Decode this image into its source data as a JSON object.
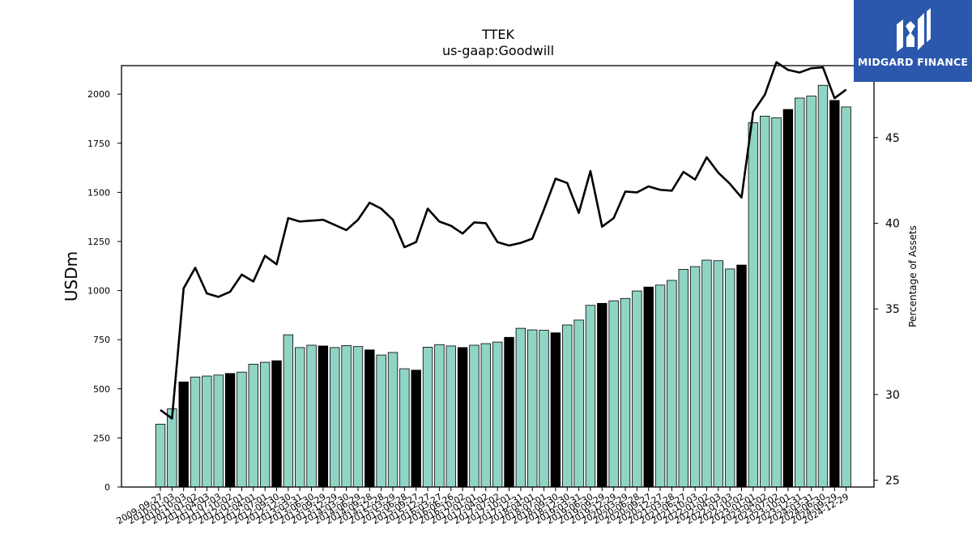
{
  "chart_data": {
    "type": "bar",
    "title": "TTEK",
    "subtitle": "us-gaap:Goodwill",
    "ylabel": "USDm",
    "y2label": "Percentage of Assets",
    "ylim": [
      0,
      2145
    ],
    "y2lim": [
      24.6,
      49.2
    ],
    "yticks": [
      0,
      250,
      500,
      750,
      1000,
      1250,
      1500,
      1750,
      2000
    ],
    "y2ticks": [
      25,
      30,
      35,
      40,
      45
    ],
    "grid": false,
    "categories": [
      "2009-09-27",
      "2010-01-03",
      "2010-10-03",
      "2011-01-02",
      "2011-04-03",
      "2011-07-03",
      "2011-10-02",
      "2012-01-01",
      "2012-04-01",
      "2012-07-01",
      "2012-09-30",
      "2012-12-30",
      "2013-03-31",
      "2013-06-30",
      "2013-09-29",
      "2013-12-29",
      "2014-03-30",
      "2014-06-29",
      "2014-09-28",
      "2014-12-28",
      "2015-03-29",
      "2015-06-28",
      "2015-09-27",
      "2015-12-27",
      "2016-03-27",
      "2016-06-26",
      "2016-10-02",
      "2017-01-01",
      "2017-04-02",
      "2017-07-02",
      "2017-10-01",
      "2017-12-31",
      "2018-04-01",
      "2018-07-01",
      "2018-09-30",
      "2018-12-30",
      "2019-03-31",
      "2019-06-30",
      "2019-09-29",
      "2019-12-29",
      "2020-03-29",
      "2020-06-28",
      "2020-09-27",
      "2020-12-27",
      "2021-03-28",
      "2021-06-27",
      "2021-10-03",
      "2022-01-02",
      "2022-04-03",
      "2022-07-03",
      "2022-10-02",
      "2023-01-01",
      "2023-04-02",
      "2023-07-02",
      "2023-10-01",
      "2023-12-31",
      "2024-03-31",
      "2024-06-30",
      "2024-09-29",
      "2024-12-29"
    ],
    "series": [
      {
        "type": "bar",
        "values": [
          320,
          398,
          535,
          560,
          565,
          570,
          578,
          585,
          625,
          635,
          643,
          775,
          710,
          722,
          718,
          710,
          720,
          715,
          698,
          672,
          685,
          602,
          595,
          712,
          725,
          718,
          710,
          722,
          730,
          738,
          762,
          808,
          800,
          798,
          785,
          825,
          850,
          925,
          935,
          948,
          960,
          998,
          1018,
          1028,
          1052,
          1108,
          1122,
          1155,
          1152,
          1110,
          1130,
          1855,
          1888,
          1880,
          1922,
          1980,
          1990,
          2045,
          1968,
          1935
        ],
        "highlight": [
          false,
          false,
          true,
          false,
          false,
          false,
          true,
          false,
          false,
          false,
          true,
          false,
          false,
          false,
          true,
          false,
          false,
          false,
          true,
          false,
          false,
          false,
          true,
          false,
          false,
          false,
          true,
          false,
          false,
          false,
          true,
          false,
          false,
          false,
          true,
          false,
          false,
          false,
          true,
          false,
          false,
          false,
          true,
          false,
          false,
          false,
          false,
          false,
          false,
          false,
          true,
          false,
          false,
          false,
          true,
          false,
          false,
          false,
          true,
          false
        ],
        "color": "#8fd4c4",
        "highlight_color": "#000000"
      },
      {
        "type": "line",
        "axis": "right",
        "color": "#000000",
        "values": [
          29.1,
          28.6,
          36.2,
          37.4,
          35.9,
          35.7,
          36.0,
          37.0,
          36.6,
          38.1,
          37.6,
          40.3,
          40.1,
          40.15,
          40.2,
          39.9,
          39.6,
          40.2,
          41.2,
          40.85,
          40.2,
          38.6,
          38.9,
          40.85,
          40.1,
          39.85,
          39.4,
          40.05,
          40.0,
          38.9,
          38.7,
          38.85,
          39.1,
          40.8,
          42.6,
          42.35,
          40.6,
          43.05,
          39.8,
          40.3,
          41.85,
          41.8,
          42.15,
          41.95,
          41.9,
          43.0,
          42.55,
          43.85,
          42.95,
          42.3,
          41.5,
          46.5,
          47.5,
          49.4,
          48.95,
          48.8,
          49.05,
          49.1,
          47.3,
          47.8
        ]
      }
    ]
  },
  "logo": {
    "text": "MIDGARD FINANCE",
    "icon": "midgard-logo-icon",
    "background": "#2b57ad"
  }
}
